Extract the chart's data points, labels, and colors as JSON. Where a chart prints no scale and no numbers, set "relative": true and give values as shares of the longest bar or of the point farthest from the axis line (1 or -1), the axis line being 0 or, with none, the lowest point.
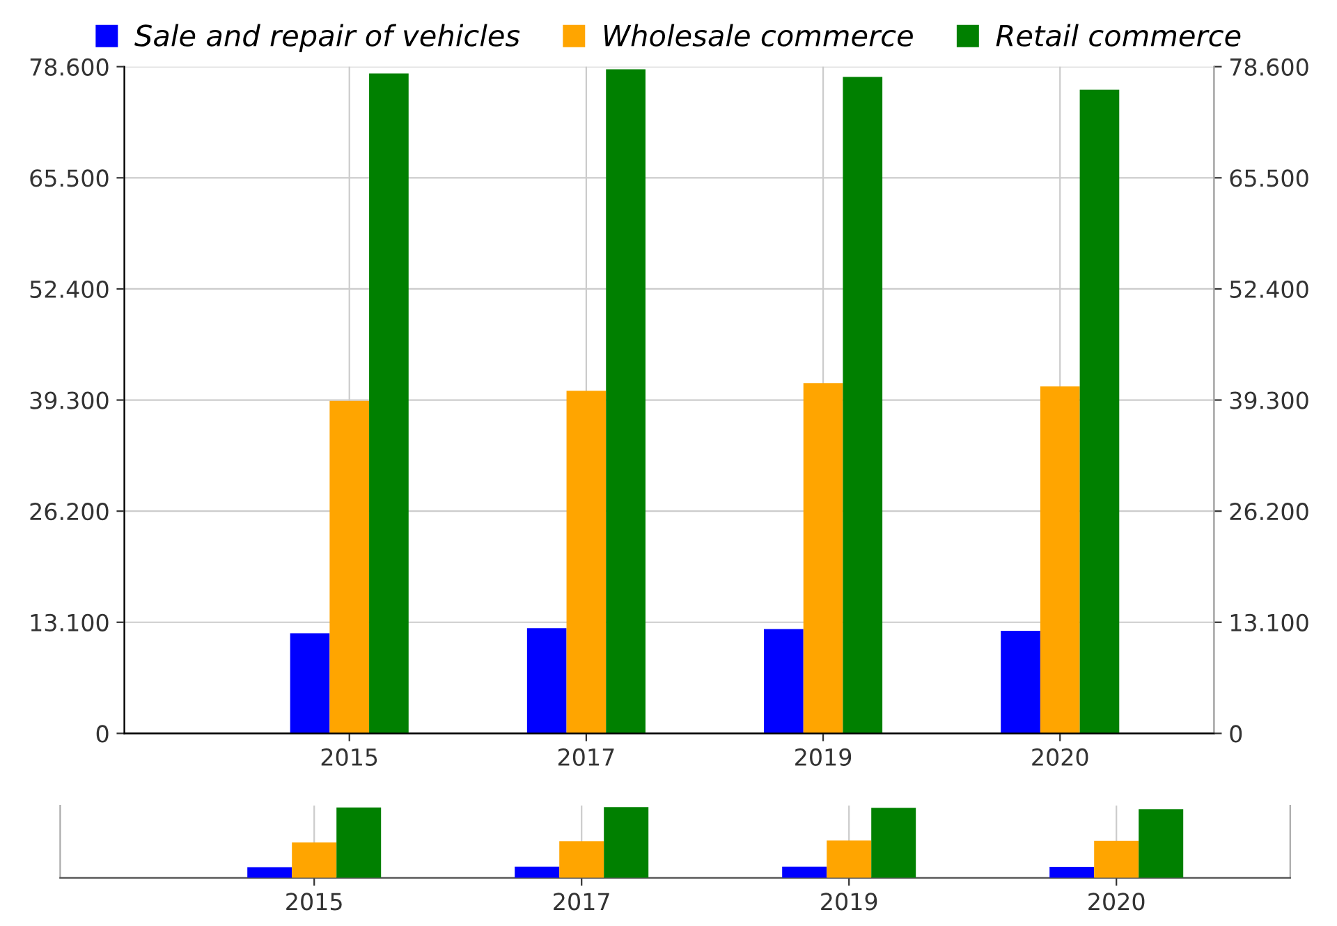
{
  "chart_data": [
    {
      "type": "bar",
      "categories": [
        "2015",
        "2017",
        "2019",
        "2020"
      ],
      "series": [
        {
          "name": "Sale and repair of vehicles",
          "color": "#0000ff",
          "values": [
            11.8,
            12.4,
            12.3,
            12.1
          ]
        },
        {
          "name": "Wholesale commerce",
          "color": "#ffa500",
          "values": [
            39.2,
            40.4,
            41.3,
            40.9
          ]
        },
        {
          "name": "Retail commerce",
          "color": "#008000",
          "values": [
            77.8,
            78.3,
            77.4,
            75.9
          ]
        }
      ],
      "ylim": [
        0,
        78.6
      ],
      "yticks": [
        0,
        {
          "value": 13.1,
          "label": "13.100"
        },
        {
          "value": 26.2,
          "label": "26.200"
        },
        {
          "value": 39.3,
          "label": "39.300"
        },
        {
          "value": 52.4,
          "label": "52.400"
        },
        {
          "value": 65.5,
          "label": "65.500"
        },
        {
          "value": 78.6,
          "label": "78.600"
        }
      ],
      "y2lim": [
        0,
        78.6
      ],
      "y2ticks": [
        0,
        {
          "value": 13.1,
          "label": "13.100"
        },
        {
          "value": 26.2,
          "label": "26.200"
        },
        {
          "value": 39.3,
          "label": "39.300"
        },
        {
          "value": 52.4,
          "label": "52.400"
        },
        {
          "value": 65.5,
          "label": "65.500"
        },
        {
          "value": 78.6,
          "label": "78.600"
        }
      ],
      "grid": true,
      "legend": "top"
    },
    {
      "type": "bar",
      "categories": [
        "2015",
        "2017",
        "2019",
        "2020"
      ],
      "relative": true,
      "tick_labels": "x",
      "series": [
        {
          "color": "#0000ff",
          "values": [
            0.151,
            0.158,
            0.157,
            0.155
          ]
        },
        {
          "color": "#ffa500",
          "values": [
            0.501,
            0.516,
            0.527,
            0.522
          ]
        },
        {
          "color": "#008000",
          "values": [
            0.994,
            1,
            0.989,
            0.969
          ]
        }
      ],
      "grid": "x"
    }
  ]
}
